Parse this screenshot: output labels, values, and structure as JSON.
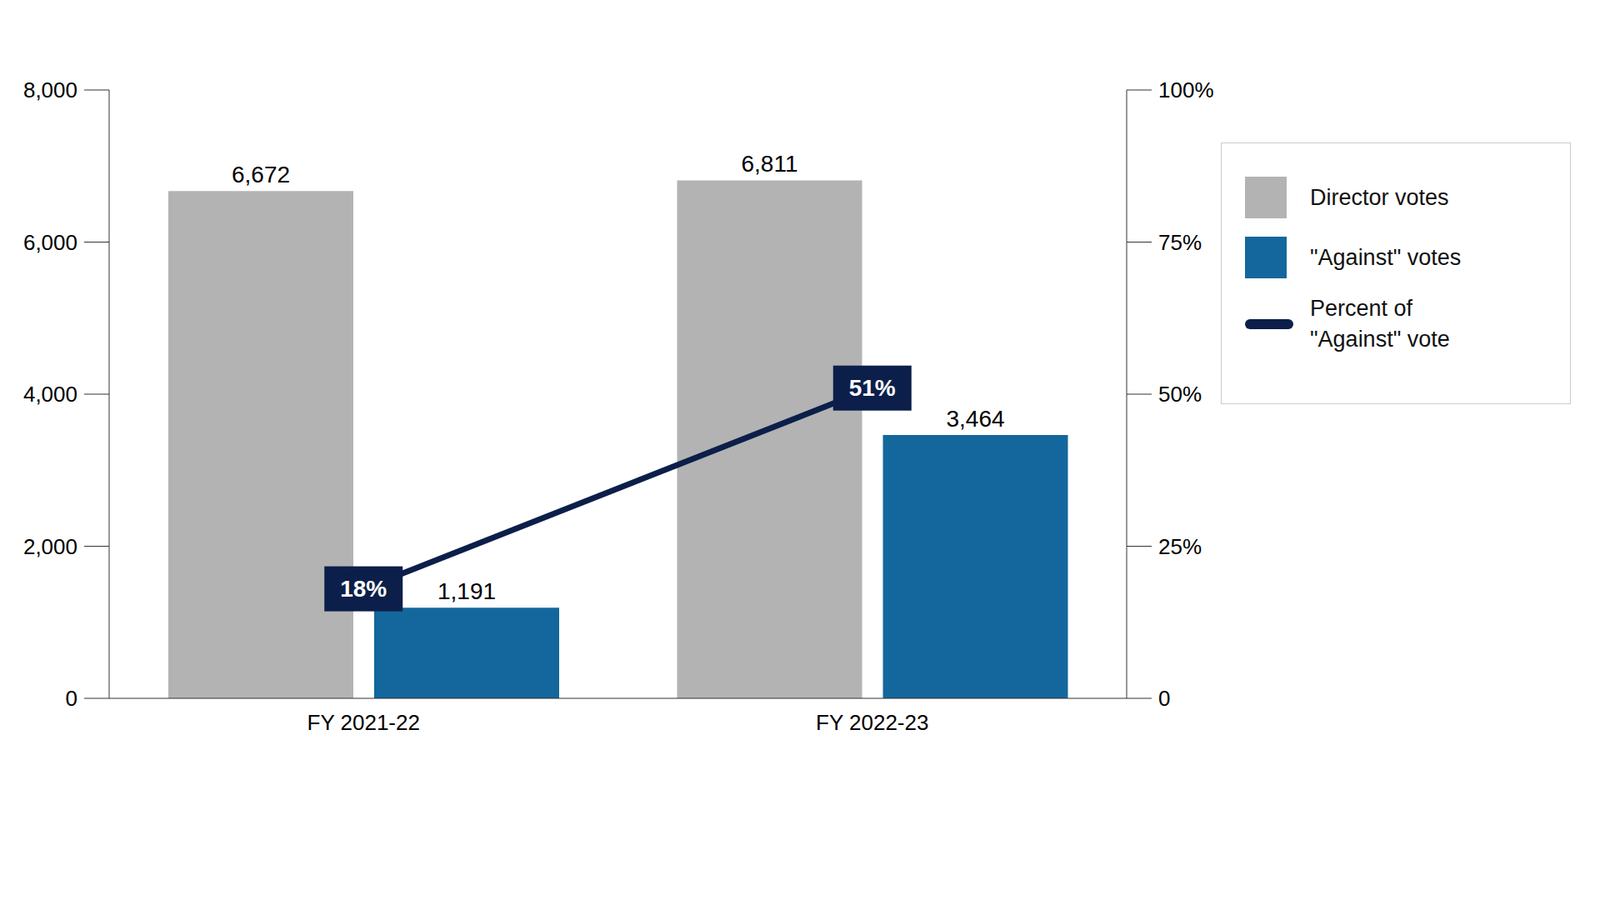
{
  "chart_data": {
    "type": "bar",
    "categories": [
      "FY 2021-22",
      "FY 2022-23"
    ],
    "series": [
      {
        "name": "Director votes",
        "color": "#b3b3b3",
        "values": [
          6672,
          6811
        ],
        "value_labels": [
          "6,672",
          "6,811"
        ]
      },
      {
        "name": "\"Against\" votes",
        "color": "#14679c",
        "values": [
          1191,
          3464
        ],
        "value_labels": [
          "1,191",
          "3,464"
        ]
      },
      {
        "name": "Percent of \"Against\" vote",
        "type": "line",
        "axis": "y2",
        "color": "#0c1f4a",
        "values": [
          18,
          51
        ],
        "value_labels": [
          "18%",
          "51%"
        ]
      }
    ],
    "ylim": [
      0,
      8000
    ],
    "yticks": [
      0,
      {
        "value": 2000,
        "label": "2,000"
      },
      {
        "value": 4000,
        "label": "4,000"
      },
      {
        "value": 6000,
        "label": "6,000"
      },
      {
        "value": 8000,
        "label": "8,000"
      }
    ],
    "y2lim": [
      0,
      100
    ],
    "y2ticks": [
      0,
      {
        "value": 25,
        "label": "25%"
      },
      {
        "value": 50,
        "label": "50%"
      },
      {
        "value": 75,
        "label": "75%"
      },
      {
        "value": 100,
        "label": "100%"
      }
    ],
    "data_labels": true,
    "legend": "right"
  }
}
